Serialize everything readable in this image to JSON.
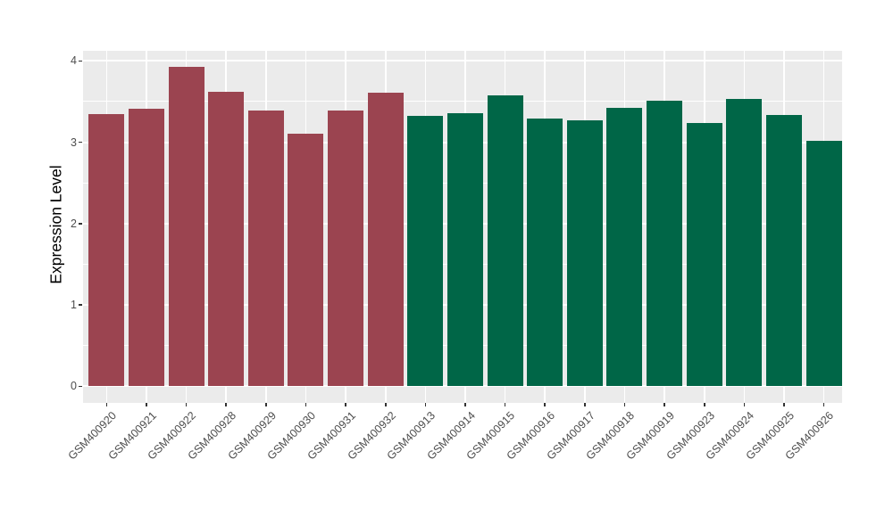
{
  "figure": {
    "background": "#ffffff",
    "panel_background": "#EBEBEB",
    "grid_color": "#ffffff",
    "tick_label_color": "#4D4D4D",
    "axis_title_color": "#000000",
    "group_colors": {
      "left_group": "#9B4450",
      "right_group": "#006647"
    }
  },
  "chart_data": {
    "type": "bar",
    "title": "",
    "xlabel": "",
    "ylabel": "Expression Level",
    "legend": "none",
    "grid": "on",
    "ylim": [
      0,
      4.12
    ],
    "yticks": [
      0,
      1,
      2,
      3,
      4
    ],
    "yticks_minor": [
      0.5,
      1.5,
      2.5,
      3.5
    ],
    "categories": [
      "GSM400920",
      "GSM400921",
      "GSM400922",
      "GSM400928",
      "GSM400929",
      "GSM400930",
      "GSM400931",
      "GSM400932",
      "GSM400913",
      "GSM400914",
      "GSM400915",
      "GSM400916",
      "GSM400917",
      "GSM400918",
      "GSM400919",
      "GSM400923",
      "GSM400924",
      "GSM400925",
      "GSM400926"
    ],
    "values": [
      3.35,
      3.41,
      3.93,
      3.62,
      3.39,
      3.11,
      3.39,
      3.61,
      3.32,
      3.36,
      3.58,
      3.29,
      3.27,
      3.42,
      3.51,
      3.24,
      3.53,
      3.34,
      3.02
    ],
    "colors": [
      "#9B4450",
      "#9B4450",
      "#9B4450",
      "#9B4450",
      "#9B4450",
      "#9B4450",
      "#9B4450",
      "#9B4450",
      "#006647",
      "#006647",
      "#006647",
      "#006647",
      "#006647",
      "#006647",
      "#006647",
      "#006647",
      "#006647",
      "#006647",
      "#006647"
    ]
  }
}
